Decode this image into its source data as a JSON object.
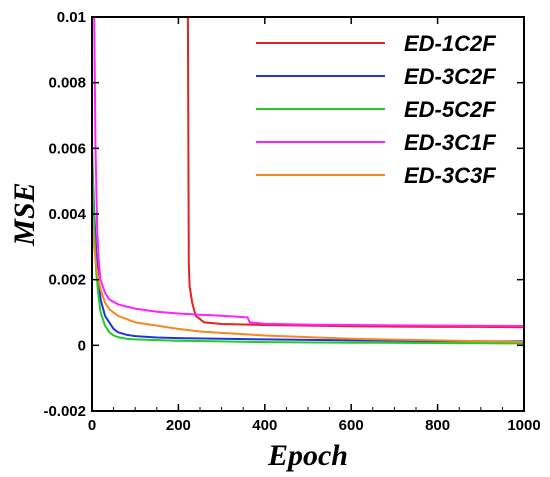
{
  "chart_data": {
    "type": "line",
    "title": "",
    "xlabel": "Epoch",
    "ylabel": "MSE",
    "xlim": [
      0,
      1000
    ],
    "ylim": [
      -0.002,
      0.01
    ],
    "grid": false,
    "legend_position": "top-right",
    "x_ticks": [
      "0",
      "200",
      "400",
      "600",
      "800",
      "1000"
    ],
    "y_ticks": [
      "-0.002",
      "0",
      "0.002",
      "0.004",
      "0.006",
      "0.008",
      "0.01"
    ],
    "series": [
      {
        "name": "ED-1C2F",
        "color": "#e8201e",
        "x": [
          222,
          224,
          226,
          232,
          240,
          260,
          300,
          400,
          500,
          600,
          700,
          800,
          900,
          1000
        ],
        "y": [
          0.01,
          0.0025,
          0.0018,
          0.0013,
          0.0009,
          0.0007,
          0.00065,
          0.00062,
          0.0006,
          0.00058,
          0.00057,
          0.00056,
          0.00056,
          0.00055
        ]
      },
      {
        "name": "ED-3C2F",
        "color": "#2233dd",
        "x": [
          0,
          5,
          10,
          15,
          20,
          30,
          40,
          50,
          60,
          80,
          100,
          150,
          200,
          300,
          400,
          600,
          800,
          1000
        ],
        "y": [
          0.006,
          0.004,
          0.0028,
          0.002,
          0.0014,
          0.0009,
          0.0007,
          0.0005,
          0.0004,
          0.00032,
          0.00028,
          0.00024,
          0.00022,
          0.0002,
          0.00018,
          0.00015,
          0.00013,
          0.00012
        ]
      },
      {
        "name": "ED-5C2F",
        "color": "#22cc22",
        "x": [
          0,
          5,
          10,
          15,
          20,
          30,
          40,
          50,
          60,
          80,
          100,
          150,
          200,
          300,
          400,
          600,
          800,
          1000
        ],
        "y": [
          0.006,
          0.0035,
          0.0022,
          0.0015,
          0.001,
          0.0006,
          0.0004,
          0.0003,
          0.00025,
          0.0002,
          0.00018,
          0.00016,
          0.00014,
          0.00012,
          0.0001,
          8e-05,
          7e-05,
          6e-05
        ]
      },
      {
        "name": "ED-3C1F",
        "color": "#ff22ff",
        "x": [
          5,
          8,
          12,
          16,
          20,
          30,
          40,
          60,
          80,
          100,
          150,
          200,
          250,
          300,
          360,
          365,
          400,
          500,
          600,
          800,
          1000
        ],
        "y": [
          0.01,
          0.006,
          0.0035,
          0.0025,
          0.002,
          0.0016,
          0.0014,
          0.00125,
          0.00118,
          0.00112,
          0.00102,
          0.00097,
          0.00093,
          0.0009,
          0.00085,
          0.0007,
          0.00066,
          0.00063,
          0.00062,
          0.0006,
          0.00059
        ]
      },
      {
        "name": "ED-3C3F",
        "color": "#f5881f",
        "x": [
          0,
          5,
          10,
          15,
          20,
          30,
          40,
          60,
          80,
          100,
          150,
          200,
          250,
          300,
          400,
          500,
          600,
          800,
          1000
        ],
        "y": [
          0.004,
          0.003,
          0.0024,
          0.002,
          0.0017,
          0.0013,
          0.0011,
          0.0009,
          0.0008,
          0.0007,
          0.0006,
          0.0005,
          0.00042,
          0.00038,
          0.0003,
          0.00025,
          0.0002,
          0.00015,
          0.0001
        ]
      }
    ]
  }
}
